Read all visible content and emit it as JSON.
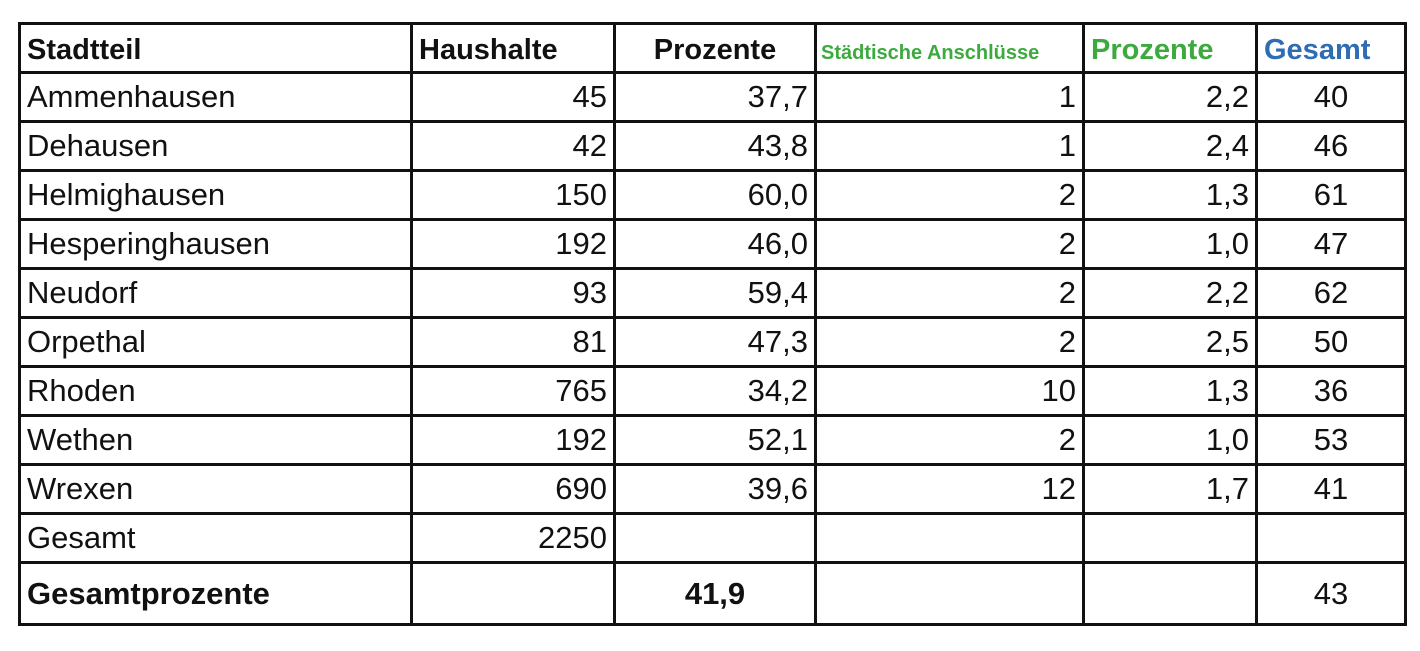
{
  "headers": {
    "stadtteil": "Stadtteil",
    "haushalte": "Haushalte",
    "prozente": "Prozente",
    "staedtische_anschluesse": "Städtische Anschlüsse",
    "prozente2": "Prozente",
    "gesamt": "Gesamt"
  },
  "rows": [
    {
      "name": "Ammenhausen",
      "haushalte": "45",
      "prozente": "37,7",
      "anschluesse": "1",
      "prozente2": "2,2",
      "gesamt": "40"
    },
    {
      "name": "Dehausen",
      "haushalte": "42",
      "prozente": "43,8",
      "anschluesse": "1",
      "prozente2": "2,4",
      "gesamt": "46"
    },
    {
      "name": "Helmighausen",
      "haushalte": "150",
      "prozente": "60,0",
      "anschluesse": "2",
      "prozente2": "1,3",
      "gesamt": "61"
    },
    {
      "name": "Hesperinghausen",
      "haushalte": "192",
      "prozente": "46,0",
      "anschluesse": "2",
      "prozente2": "1,0",
      "gesamt": "47"
    },
    {
      "name": "Neudorf",
      "haushalte": "93",
      "prozente": "59,4",
      "anschluesse": "2",
      "prozente2": "2,2",
      "gesamt": "62"
    },
    {
      "name": "Orpethal",
      "haushalte": "81",
      "prozente": "47,3",
      "anschluesse": "2",
      "prozente2": "2,5",
      "gesamt": "50"
    },
    {
      "name": "Rhoden",
      "haushalte": "765",
      "prozente": "34,2",
      "anschluesse": "10",
      "prozente2": "1,3",
      "gesamt": "36"
    },
    {
      "name": "Wethen",
      "haushalte": "192",
      "prozente": "52,1",
      "anschluesse": "2",
      "prozente2": "1,0",
      "gesamt": "53"
    },
    {
      "name": "Wrexen",
      "haushalte": "690",
      "prozente": "39,6",
      "anschluesse": "12",
      "prozente2": "1,7",
      "gesamt": "41"
    }
  ],
  "gesamt_row": {
    "label": "Gesamt",
    "haushalte": "2250"
  },
  "total_row": {
    "label": "Gesamtprozente",
    "prozente": "41,9",
    "gesamt": "43"
  },
  "colors": {
    "green_header": "#3daa3f",
    "blue": "#2e6db3",
    "red": "#d93025",
    "rhoden_gesamt": "#d93025"
  }
}
